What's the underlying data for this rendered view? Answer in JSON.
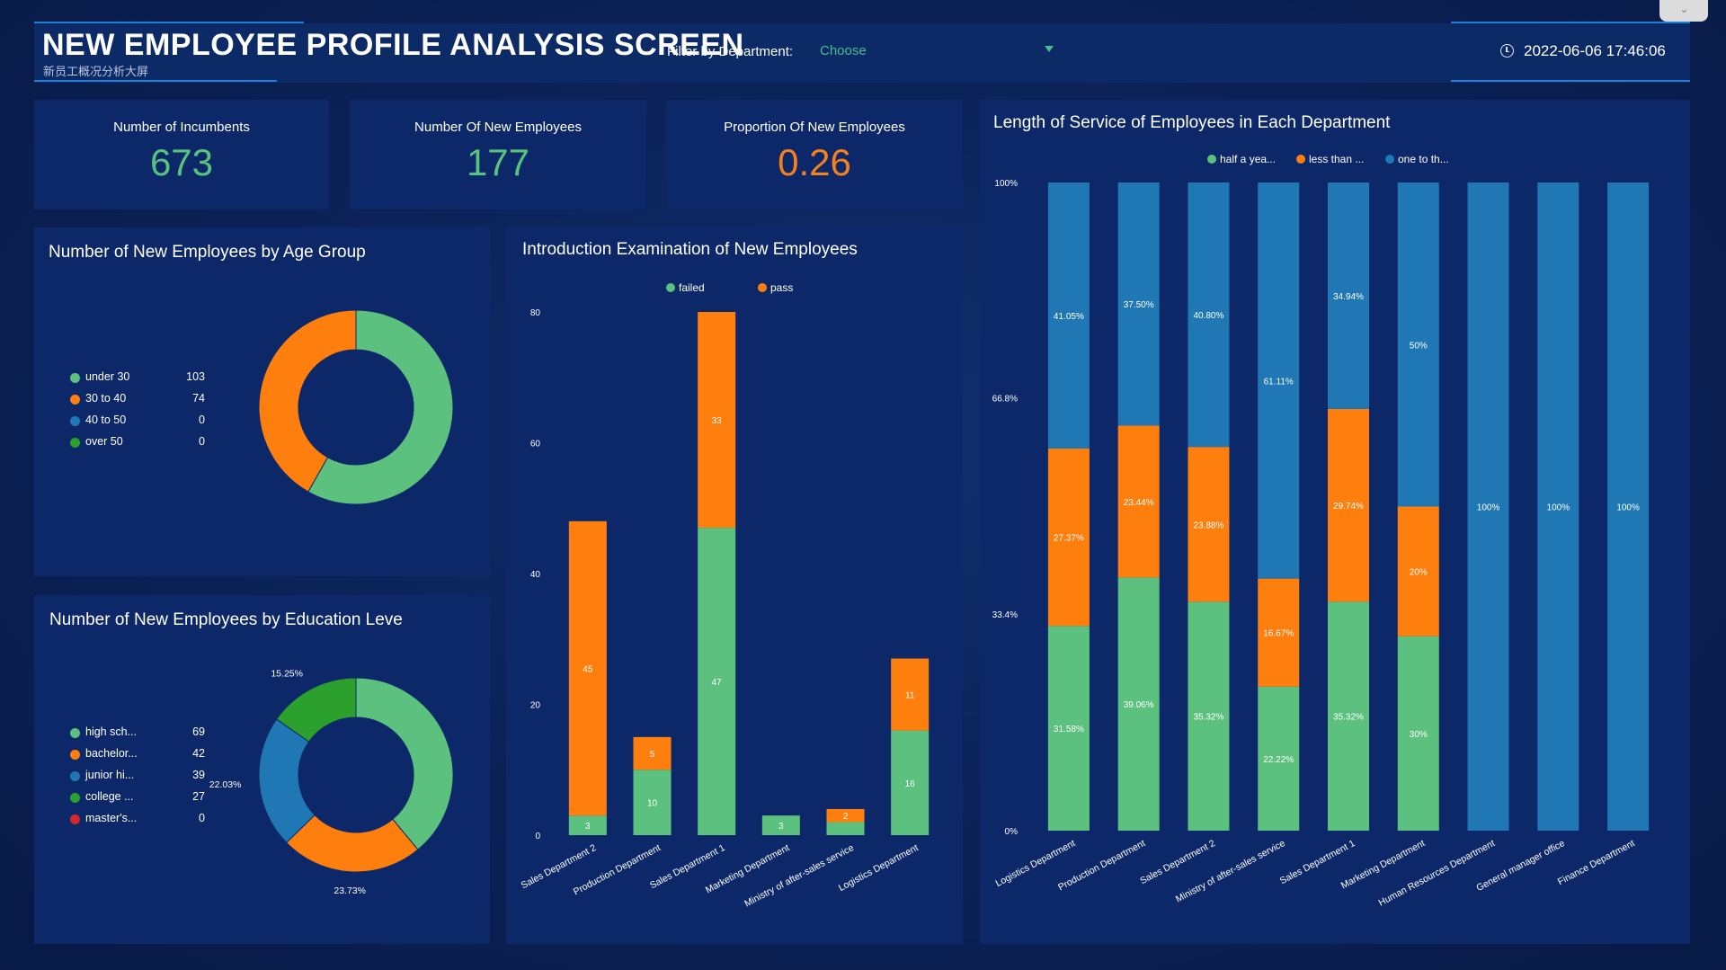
{
  "header": {
    "title": "NEW EMPLOYEE PROFILE ANALYSIS SCREEN",
    "subtitle": "新员工概况分析大屏",
    "filter_label": "Filter by Department:",
    "filter_value": "Choose",
    "datetime": "2022-06-06 17:46:06",
    "collapse_glyph": "⌄"
  },
  "kpis": [
    {
      "label": "Number of Incumbents",
      "value": "673",
      "color": "#59c27f"
    },
    {
      "label": "Number Of New Employees",
      "value": "177",
      "color": "#59c27f"
    },
    {
      "label": "Proportion Of New Employees",
      "value": "0.26",
      "color": "#f5801e"
    }
  ],
  "colors": {
    "green": "#5cc17e",
    "orange": "#ff7f0e",
    "blue": "#1f77b4",
    "dark_green": "#2ca02c",
    "red": "#d62728"
  },
  "chart_data": [
    {
      "type": "pie",
      "title": "Number of New Employees by Age Group",
      "donut": true,
      "labels": [
        "under 30",
        "30 to 40",
        "40 to 50",
        "over 50"
      ],
      "values": [
        103,
        74,
        0,
        0
      ],
      "colors": [
        "#5cc17e",
        "#ff7f0e",
        "#1f77b4",
        "#2ca02c"
      ],
      "legend_position": "left"
    },
    {
      "type": "pie",
      "title": "Number of New Employees by Education Leve",
      "donut": true,
      "labels": [
        "high sch...",
        "bachelor...",
        "junior hi...",
        "college ...",
        "master's..."
      ],
      "values": [
        69,
        42,
        39,
        27,
        0
      ],
      "colors": [
        "#5cc17e",
        "#ff7f0e",
        "#1f77b4",
        "#2ca02c",
        "#d62728"
      ],
      "slice_labels": [
        "",
        "23.73%",
        "22.03%",
        "15.25%",
        ""
      ],
      "legend_position": "left"
    },
    {
      "type": "bar",
      "stacked": true,
      "title": "Introduction Examination of New Employees",
      "categories": [
        "Sales Department 2",
        "Production Department",
        "Sales Department 1",
        "Marketing Department",
        "Ministry of after-sales service",
        "Logistics Department"
      ],
      "series": [
        {
          "name": "failed",
          "values": [
            3,
            10,
            47,
            3,
            2,
            16
          ],
          "color": "#5cc17e",
          "labels": [
            "3",
            "10",
            "47",
            "3",
            "",
            "16"
          ]
        },
        {
          "name": "pass",
          "values": [
            45,
            5,
            33,
            0,
            2,
            11
          ],
          "color": "#ff7f0e",
          "labels": [
            "45",
            "5",
            "33",
            "",
            "2",
            "11"
          ]
        }
      ],
      "ylim": [
        0,
        80
      ],
      "yticks": [
        0,
        20,
        40,
        60,
        80
      ],
      "legend_position": "top"
    },
    {
      "type": "bar",
      "stacked": true,
      "percent": true,
      "title": "Length of Service of Employees in Each Department",
      "categories": [
        "Logistics Department",
        "Production Department",
        "Sales Department 2",
        "Ministry of after-sales service",
        "Sales Department 1",
        "Marketing Department",
        "Human Resources Department",
        "General manager office",
        "Finance Department"
      ],
      "series": [
        {
          "name": "half a yea...",
          "values": [
            31.58,
            39.06,
            35.32,
            22.22,
            35.32,
            30,
            0,
            0,
            0
          ],
          "color": "#5cc17e",
          "labels": [
            "31.58%",
            "39.06%",
            "35.32%",
            "22.22%",
            "35.32%",
            "30%",
            "",
            "",
            ""
          ]
        },
        {
          "name": "less than ...",
          "values": [
            27.37,
            23.44,
            23.88,
            16.67,
            29.74,
            20,
            0,
            0,
            0
          ],
          "color": "#ff7f0e",
          "labels": [
            "27.37%",
            "23.44%",
            "23.88%",
            "16.67%",
            "29.74%",
            "20%",
            "",
            "",
            ""
          ]
        },
        {
          "name": "one to th...",
          "values": [
            41.05,
            37.5,
            40.8,
            61.11,
            34.94,
            50,
            100,
            100,
            100
          ],
          "color": "#1f77b4",
          "labels": [
            "41.05%",
            "37.50%",
            "40.80%",
            "61.11%",
            "34.94%",
            "50%",
            "100%",
            "100%",
            "100%"
          ]
        }
      ],
      "ylim": [
        0,
        100
      ],
      "ytick_labels": [
        "0%",
        "33.4%",
        "66.8%",
        "100%"
      ],
      "legend_position": "top"
    }
  ]
}
